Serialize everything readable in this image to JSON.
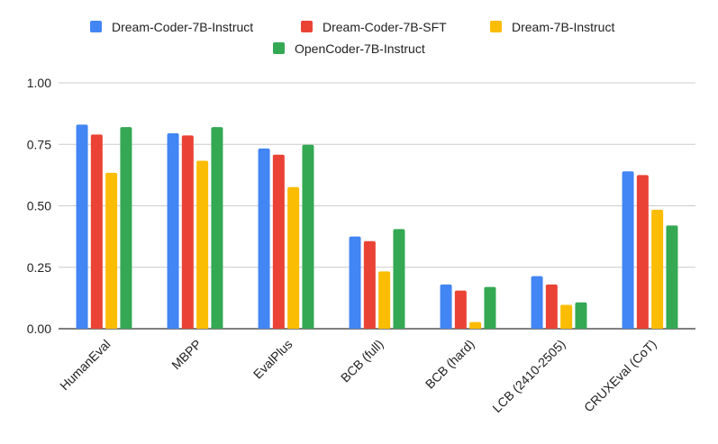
{
  "chart_data": {
    "type": "bar",
    "title": "",
    "xlabel": "",
    "ylabel": "",
    "ylim": [
      0,
      1.0
    ],
    "yticks": [
      "0.00",
      "0.25",
      "0.50",
      "0.75",
      "1.00"
    ],
    "yticks_values": [
      0,
      0.25,
      0.5,
      0.75,
      1.0
    ],
    "grid": true,
    "legend_position": "top",
    "categories": [
      "HumanEval",
      "MBPP",
      "EvalPlus",
      "BCB (full)",
      "BCB (hard)",
      "LCB (2410-2505)",
      "CRUXEval (CoT)"
    ],
    "series": [
      {
        "name": "Dream-Coder-7B-Instruct",
        "color": "#4285F4",
        "values": [
          0.83,
          0.795,
          0.733,
          0.375,
          0.18,
          0.214,
          0.64
        ]
      },
      {
        "name": "Dream-Coder-7B-SFT",
        "color": "#EA4335",
        "values": [
          0.79,
          0.786,
          0.708,
          0.356,
          0.155,
          0.18,
          0.625
        ]
      },
      {
        "name": "Dream-7B-Instruct",
        "color": "#FBBC04",
        "values": [
          0.634,
          0.683,
          0.576,
          0.233,
          0.027,
          0.097,
          0.484
        ]
      },
      {
        "name": "OpenCoder-7B-Instruct",
        "color": "#34A853",
        "values": [
          0.82,
          0.82,
          0.748,
          0.405,
          0.17,
          0.107,
          0.42
        ]
      }
    ]
  }
}
